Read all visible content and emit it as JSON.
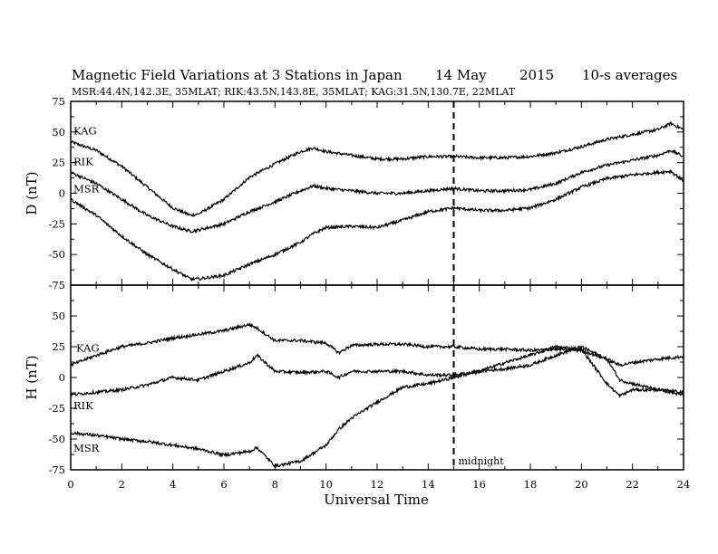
{
  "title": "Magnetic Field Variations at 3 Stations in Japan",
  "date": "14 May",
  "year": "2015",
  "averaging": "10-s averages",
  "subtitle": "MSR:44.4N,142.3E, 35MLAT;   RIK:43.5N,143.8E, 35MLAT;   KAG:31.5N,130.7E, 22MLAT",
  "xlabel": "Universal Time",
  "midnight_label": "midnight",
  "midnight_ut": 15,
  "xticks": [
    "0",
    "2",
    "4",
    "6",
    "8",
    "10",
    "12",
    "14",
    "16",
    "18",
    "20",
    "22",
    "24"
  ],
  "chart_data": [
    {
      "type": "line",
      "panel": "D",
      "ylabel": "D (nT)",
      "xlim": [
        0,
        24
      ],
      "ylim": [
        -75,
        75
      ],
      "yticks": [
        "75",
        "50",
        "25",
        "0",
        "-25",
        "-50",
        "-75"
      ],
      "x": [
        0,
        1,
        2,
        3,
        4,
        4.7,
        5,
        6,
        7,
        8,
        9,
        9.5,
        10,
        11,
        12,
        13,
        14,
        15,
        16,
        17,
        18,
        19,
        20,
        21,
        22,
        23,
        23.5,
        24
      ],
      "series": [
        {
          "name": "KAG",
          "values": [
            42,
            35,
            22,
            5,
            -12,
            -18,
            -17,
            -5,
            13,
            24,
            34,
            37,
            34,
            31,
            28,
            28,
            30,
            30,
            29,
            29,
            30,
            33,
            38,
            44,
            48,
            52,
            57,
            52
          ]
        },
        {
          "name": "RIK",
          "values": [
            17,
            8,
            -5,
            -18,
            -27,
            -31,
            -30,
            -25,
            -15,
            -7,
            2,
            6,
            4,
            2,
            0,
            0,
            2,
            4,
            2,
            2,
            3,
            8,
            17,
            23,
            27,
            31,
            35,
            30
          ]
        },
        {
          "name": "MSR",
          "values": [
            -5,
            -18,
            -35,
            -50,
            -62,
            -70,
            -70,
            -67,
            -58,
            -50,
            -40,
            -33,
            -28,
            -27,
            -28,
            -22,
            -15,
            -12,
            -14,
            -14,
            -12,
            -5,
            5,
            12,
            15,
            17,
            18,
            10
          ]
        }
      ]
    },
    {
      "type": "line",
      "panel": "H",
      "ylabel": "H (nT)",
      "xlim": [
        0,
        24
      ],
      "ylim": [
        -75,
        75
      ],
      "yticks": [
        "75",
        "50",
        "25",
        "0",
        "-25",
        "-50",
        "-75"
      ],
      "x": [
        0,
        1,
        2,
        3,
        4,
        5,
        6,
        7,
        7.3,
        8,
        9,
        10,
        10.5,
        11,
        12,
        13,
        14,
        15,
        16,
        17,
        18,
        19,
        20,
        21,
        21.5,
        22,
        23,
        24
      ],
      "series": [
        {
          "name": "KAG",
          "values": [
            10,
            18,
            25,
            28,
            32,
            35,
            38,
            43,
            40,
            30,
            30,
            28,
            20,
            26,
            27,
            27,
            25,
            25,
            23,
            23,
            22,
            23,
            22,
            15,
            10,
            12,
            15,
            17
          ]
        },
        {
          "name": "RIK",
          "values": [
            -14,
            -12,
            -10,
            -6,
            0,
            -2,
            5,
            12,
            18,
            5,
            4,
            5,
            0,
            5,
            5,
            5,
            2,
            2,
            5,
            12,
            18,
            25,
            23,
            -5,
            -15,
            -10,
            -10,
            -14
          ]
        },
        {
          "name": "MSR",
          "values": [
            -45,
            -47,
            -50,
            -52,
            -55,
            -58,
            -63,
            -60,
            -57,
            -72,
            -68,
            -55,
            -42,
            -33,
            -20,
            -8,
            -5,
            0,
            5,
            7,
            10,
            18,
            25,
            15,
            -2,
            -5,
            -10,
            -12
          ]
        }
      ]
    }
  ]
}
